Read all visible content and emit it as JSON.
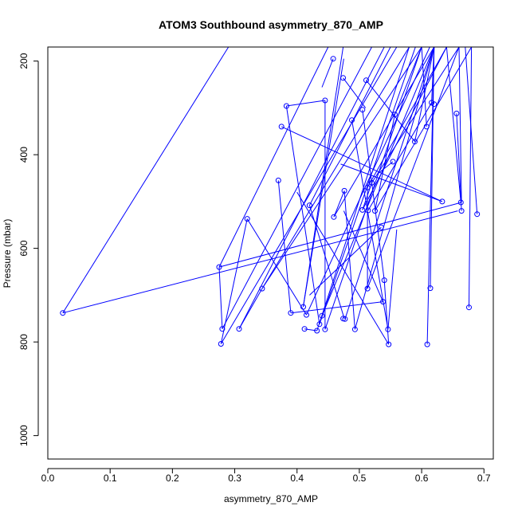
{
  "chart_data": {
    "type": "line",
    "title": "ATOM3 Southbound asymmetry_870_AMP",
    "xlabel": "asymmetry_870_AMP",
    "ylabel": "Pressure (mbar)",
    "xlim": [
      0.0,
      0.715
    ],
    "ylim": [
      1050,
      170
    ],
    "y_inverted": true,
    "grid": false,
    "series_color": "#0000FF",
    "xticks": [
      0.0,
      0.1,
      0.2,
      0.3,
      0.4,
      0.5,
      0.6,
      0.7
    ],
    "xtick_labels": [
      "0.0",
      "0.1",
      "0.2",
      "0.3",
      "0.4",
      "0.5",
      "0.6",
      "0.7"
    ],
    "yticks": [
      200,
      400,
      600,
      800,
      1000
    ],
    "ytick_labels": [
      "200",
      "400",
      "600",
      "800",
      "1000"
    ],
    "series": [
      {
        "marker": "open-circle",
        "x": [
          0.695,
          0.68,
          0.665,
          0.665,
          0.62,
          0.6,
          0.59,
          0.59,
          0.555,
          0.52,
          0.52,
          0.51,
          0.5,
          0.47,
          0.49,
          0.46,
          0.445,
          0.445,
          0.44,
          0.435,
          0.42,
          0.42,
          0.41,
          0.395,
          0.345,
          0.3,
          0.28,
          0.28,
          0.285,
          0.32,
          0.375,
          0.37,
          0.41,
          0.425,
          0.465,
          0.485,
          0.5,
          0.53,
          0.545,
          0.58,
          0.58,
          0.56,
          0.54,
          0.51,
          0.48,
          0.475,
          0.45,
          0.44,
          0.44,
          0.52,
          0.55,
          0.61,
          0.61,
          0.635,
          0.64,
          0.645,
          0.655,
          0.67,
          0.68,
          0.685,
          0.69,
          0.66,
          0.62,
          0.57,
          0.55,
          0.535,
          0.52,
          0.505,
          0.495,
          0.49,
          0.48,
          0.475,
          0.46,
          0.455,
          0.43,
          0.42,
          0.41,
          0.39,
          0.375,
          0.375,
          0.38,
          0.41,
          0.44,
          0.46,
          0.48,
          0.5,
          0.51,
          0.52,
          0.53,
          0.545,
          0.55,
          0.55,
          0.525,
          0.515,
          0.49,
          0.47,
          0.44,
          0.41,
          0.385,
          0.345,
          0.31,
          0.29,
          0.275,
          0.275,
          0.285,
          0.3,
          0.315,
          0.325,
          0.34,
          0.36,
          0.38,
          0.4,
          0.42,
          0.445,
          0.46,
          0.48,
          0.5,
          0.52,
          0.54,
          0.56,
          0.575,
          0.585,
          0.59,
          0.6,
          0.61,
          0.62,
          0.62,
          0.625,
          0.63,
          0.63,
          0.635,
          0.64,
          0.65,
          0.66,
          0.665,
          0.665,
          0.67,
          0.675,
          0.68,
          0.685,
          0.68,
          0.68,
          0.68,
          0.685,
          0.69,
          0.695,
          0.7,
          0.705
        ],
        "y": [
          525,
          725,
          520,
          500,
          290,
          340,
          375,
          385,
          415,
          455,
          470,
          520,
          325,
          480,
          470,
          530,
          510,
          555,
          745,
          760,
          775,
          745,
          725,
          740,
          685,
          770,
          770,
          805,
          795,
          540,
          455,
          340,
          295,
          505,
          230,
          195,
          240,
          300,
          555,
          515,
          590,
          570,
          690,
          720,
          730,
          750,
          770,
          775,
          770,
          685,
          770,
          805,
          685,
          500,
          420,
          390,
          310,
          520,
          150,
          150,
          150,
          150,
          150,
          150,
          150,
          150,
          150,
          150,
          150,
          150,
          150,
          150,
          150,
          150,
          150,
          150,
          150,
          150,
          150,
          150,
          150,
          150,
          150,
          150,
          150,
          150,
          150,
          150,
          150,
          150,
          150,
          150,
          150,
          150,
          150,
          150,
          150,
          150,
          150,
          150,
          150,
          150,
          150,
          150,
          150,
          150,
          150,
          150,
          150,
          150,
          150,
          150,
          150,
          150,
          150,
          150,
          150,
          150,
          150,
          150,
          150,
          150,
          150,
          150,
          150,
          150,
          150,
          150,
          150,
          150,
          150,
          150,
          150,
          150,
          150,
          150,
          150,
          150,
          150,
          150,
          150,
          150,
          150,
          150,
          150,
          150,
          150,
          150
        ]
      }
    ],
    "points": [
      [
        0.458,
        195
      ],
      [
        0.474,
        236
      ],
      [
        0.511,
        241
      ],
      [
        0.445,
        284
      ],
      [
        0.383,
        296
      ],
      [
        0.616,
        289
      ],
      [
        0.62,
        292
      ],
      [
        0.505,
        304
      ],
      [
        0.557,
        314
      ],
      [
        0.656,
        312
      ],
      [
        0.488,
        326
      ],
      [
        0.375,
        340
      ],
      [
        0.608,
        340
      ],
      [
        0.589,
        372
      ],
      [
        0.554,
        415
      ],
      [
        0.37,
        455
      ],
      [
        0.52,
        460
      ],
      [
        0.513,
        470
      ],
      [
        0.476,
        477
      ],
      [
        0.633,
        500
      ],
      [
        0.663,
        502
      ],
      [
        0.42,
        508
      ],
      [
        0.505,
        518
      ],
      [
        0.514,
        519
      ],
      [
        0.525,
        520
      ],
      [
        0.664,
        520
      ],
      [
        0.689,
        527
      ],
      [
        0.459,
        533
      ],
      [
        0.32,
        537
      ],
      [
        0.535,
        555
      ],
      [
        0.275,
        640
      ],
      [
        0.54,
        668
      ],
      [
        0.513,
        686
      ],
      [
        0.344,
        686
      ],
      [
        0.614,
        685
      ],
      [
        0.538,
        714
      ],
      [
        0.024,
        738
      ],
      [
        0.41,
        725
      ],
      [
        0.676,
        726
      ],
      [
        0.39,
        738
      ],
      [
        0.415,
        742
      ],
      [
        0.44,
        744
      ],
      [
        0.474,
        750
      ],
      [
        0.477,
        751
      ],
      [
        0.436,
        762
      ],
      [
        0.28,
        772
      ],
      [
        0.307,
        772
      ],
      [
        0.412,
        772
      ],
      [
        0.445,
        773
      ],
      [
        0.493,
        773
      ],
      [
        0.546,
        773
      ],
      [
        0.432,
        776
      ],
      [
        0.278,
        804
      ],
      [
        0.547,
        805
      ],
      [
        0.609,
        805
      ]
    ],
    "segments": [
      [
        [
          0.024,
          738
        ],
        [
          0.29,
          170
        ]
      ],
      [
        [
          0.024,
          738
        ],
        [
          0.658,
          520
        ]
      ],
      [
        [
          0.275,
          640
        ],
        [
          0.45,
          170
        ]
      ],
      [
        [
          0.275,
          640
        ],
        [
          0.28,
          772
        ]
      ],
      [
        [
          0.275,
          640
        ],
        [
          0.664,
          502
        ]
      ],
      [
        [
          0.28,
          772
        ],
        [
          0.52,
          170
        ]
      ],
      [
        [
          0.278,
          804
        ],
        [
          0.32,
          537
        ]
      ],
      [
        [
          0.278,
          804
        ],
        [
          0.56,
          170
        ]
      ],
      [
        [
          0.307,
          772
        ],
        [
          0.54,
          170
        ]
      ],
      [
        [
          0.307,
          772
        ],
        [
          0.344,
          686
        ]
      ],
      [
        [
          0.344,
          686
        ],
        [
          0.6,
          170
        ]
      ],
      [
        [
          0.344,
          686
        ],
        [
          0.58,
          170
        ]
      ],
      [
        [
          0.32,
          537
        ],
        [
          0.415,
          742
        ]
      ],
      [
        [
          0.37,
          455
        ],
        [
          0.39,
          738
        ]
      ],
      [
        [
          0.375,
          340
        ],
        [
          0.633,
          500
        ]
      ],
      [
        [
          0.383,
          296
        ],
        [
          0.445,
          284
        ]
      ],
      [
        [
          0.383,
          296
        ],
        [
          0.436,
          762
        ]
      ],
      [
        [
          0.39,
          738
        ],
        [
          0.538,
          714
        ]
      ],
      [
        [
          0.41,
          725
        ],
        [
          0.474,
          170
        ]
      ],
      [
        [
          0.41,
          725
        ],
        [
          0.475,
          195
        ]
      ],
      [
        [
          0.412,
          772
        ],
        [
          0.432,
          776
        ]
      ],
      [
        [
          0.415,
          742
        ],
        [
          0.613,
          170
        ]
      ],
      [
        [
          0.42,
          508
        ],
        [
          0.55,
          170
        ]
      ],
      [
        [
          0.42,
          508
        ],
        [
          0.476,
          750
        ]
      ],
      [
        [
          0.432,
          776
        ],
        [
          0.58,
          170
        ]
      ],
      [
        [
          0.436,
          762
        ],
        [
          0.59,
          170
        ]
      ],
      [
        [
          0.44,
          744
        ],
        [
          0.62,
          170
        ]
      ],
      [
        [
          0.445,
          284
        ],
        [
          0.445,
          773
        ]
      ],
      [
        [
          0.445,
          773
        ],
        [
          0.6,
          170
        ]
      ],
      [
        [
          0.458,
          195
        ],
        [
          0.44,
          256
        ]
      ],
      [
        [
          0.459,
          533
        ],
        [
          0.62,
          170
        ]
      ],
      [
        [
          0.474,
          236
        ],
        [
          0.51,
          300
        ]
      ],
      [
        [
          0.476,
          477
        ],
        [
          0.493,
          773
        ]
      ],
      [
        [
          0.477,
          751
        ],
        [
          0.62,
          170
        ]
      ],
      [
        [
          0.488,
          326
        ],
        [
          0.546,
          773
        ]
      ],
      [
        [
          0.493,
          773
        ],
        [
          0.62,
          170
        ]
      ],
      [
        [
          0.505,
          304
        ],
        [
          0.54,
          668
        ]
      ],
      [
        [
          0.505,
          518
        ],
        [
          0.64,
          170
        ]
      ],
      [
        [
          0.511,
          241
        ],
        [
          0.589,
          372
        ]
      ],
      [
        [
          0.513,
          470
        ],
        [
          0.64,
          170
        ]
      ],
      [
        [
          0.513,
          686
        ],
        [
          0.66,
          170
        ]
      ],
      [
        [
          0.514,
          519
        ],
        [
          0.616,
          289
        ]
      ],
      [
        [
          0.52,
          460
        ],
        [
          0.66,
          170
        ]
      ],
      [
        [
          0.525,
          520
        ],
        [
          0.68,
          170
        ]
      ],
      [
        [
          0.535,
          555
        ],
        [
          0.42,
          700
        ]
      ],
      [
        [
          0.538,
          714
        ],
        [
          0.475,
          520
        ]
      ],
      [
        [
          0.54,
          668
        ],
        [
          0.547,
          805
        ]
      ],
      [
        [
          0.546,
          773
        ],
        [
          0.56,
          560
        ]
      ],
      [
        [
          0.547,
          805
        ],
        [
          0.4,
          480
        ]
      ],
      [
        [
          0.554,
          415
        ],
        [
          0.53,
          440
        ]
      ],
      [
        [
          0.557,
          314
        ],
        [
          0.6,
          170
        ]
      ],
      [
        [
          0.589,
          372
        ],
        [
          0.62,
          170
        ]
      ],
      [
        [
          0.608,
          340
        ],
        [
          0.6,
          170
        ]
      ],
      [
        [
          0.609,
          805
        ],
        [
          0.62,
          170
        ]
      ],
      [
        [
          0.614,
          685
        ],
        [
          0.62,
          170
        ]
      ],
      [
        [
          0.616,
          289
        ],
        [
          0.62,
          170
        ]
      ],
      [
        [
          0.633,
          500
        ],
        [
          0.47,
          420
        ]
      ],
      [
        [
          0.656,
          312
        ],
        [
          0.664,
          520
        ]
      ],
      [
        [
          0.663,
          502
        ],
        [
          0.64,
          170
        ]
      ],
      [
        [
          0.664,
          502
        ],
        [
          0.66,
          170
        ]
      ],
      [
        [
          0.676,
          726
        ],
        [
          0.68,
          170
        ]
      ],
      [
        [
          0.689,
          527
        ],
        [
          0.67,
          170
        ]
      ],
      [
        [
          0.52,
          460
        ],
        [
          0.505,
          518
        ]
      ],
      [
        [
          0.476,
          477
        ],
        [
          0.459,
          533
        ]
      ],
      [
        [
          0.513,
          470
        ],
        [
          0.513,
          686
        ]
      ],
      [
        [
          0.557,
          314
        ],
        [
          0.525,
          520
        ]
      ]
    ]
  }
}
